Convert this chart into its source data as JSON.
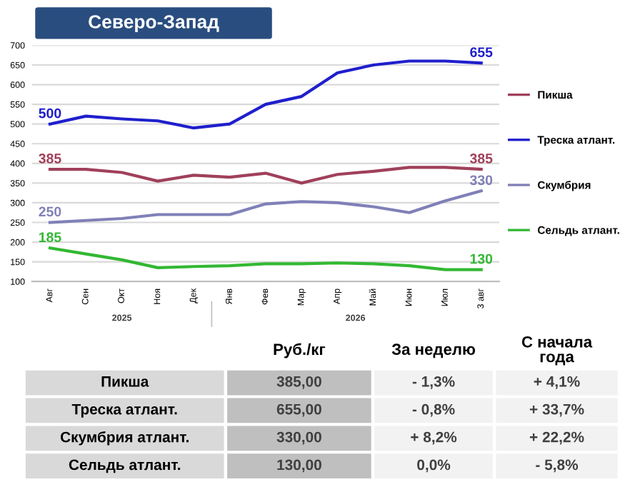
{
  "chart_data": {
    "type": "line",
    "title": "Северо-Запад",
    "categories": [
      "Авг",
      "Сен",
      "Окт",
      "Ноя",
      "Дек",
      "Янв",
      "Фев",
      "Мар",
      "Апр",
      "Май",
      "Июн",
      "Июл",
      "3 авг"
    ],
    "series": [
      {
        "name": "Пикша",
        "color": "#a0405a",
        "values": [
          385,
          385,
          377,
          355,
          370,
          365,
          375,
          350,
          372,
          380,
          390,
          390,
          385
        ],
        "value_labels": [
          "385",
          null,
          null,
          null,
          null,
          null,
          null,
          null,
          null,
          null,
          null,
          null,
          "385"
        ]
      },
      {
        "name": "Треска атлант.",
        "color": "#1f1fcc",
        "values": [
          500,
          520,
          513,
          508,
          490,
          500,
          550,
          570,
          630,
          650,
          660,
          660,
          655
        ],
        "value_labels": [
          "500",
          null,
          null,
          null,
          null,
          null,
          null,
          null,
          null,
          null,
          null,
          null,
          "655"
        ]
      },
      {
        "name": "Скумбрия",
        "color": "#8080b8",
        "values": [
          250,
          255,
          260,
          270,
          270,
          270,
          297,
          303,
          300,
          290,
          275,
          305,
          330
        ],
        "value_labels": [
          "250",
          null,
          null,
          null,
          null,
          null,
          null,
          null,
          null,
          null,
          null,
          null,
          "330"
        ]
      },
      {
        "name": "Сельдь атлант.",
        "color": "#33b833",
        "values": [
          185,
          170,
          155,
          135,
          138,
          140,
          145,
          145,
          147,
          145,
          140,
          130,
          130
        ],
        "value_labels": [
          "185",
          null,
          null,
          null,
          null,
          null,
          null,
          null,
          null,
          null,
          null,
          null,
          "130"
        ]
      }
    ],
    "ylim": [
      100,
      700
    ],
    "yticks": [
      100,
      150,
      200,
      250,
      300,
      350,
      400,
      450,
      500,
      550,
      600,
      650,
      700
    ],
    "grid": "y",
    "legend": "right",
    "marker": "none",
    "line_style": "solid",
    "annotations": [
      "2025",
      "2026",
      "Руб./кг",
      "За неделю",
      "С начала\nгода",
      "Пикша",
      "385,00",
      "- 1,3%",
      "+ 4,1%",
      "Треска атлант.",
      "655,00",
      "- 0,8%",
      "+ 33,7%",
      "Скумбрия атлант.",
      "330,00",
      "+ 8,2%",
      "+ 22,2%",
      "Сельдь атлант.",
      "130,00",
      "0,0%",
      "- 5,8%"
    ]
  }
}
